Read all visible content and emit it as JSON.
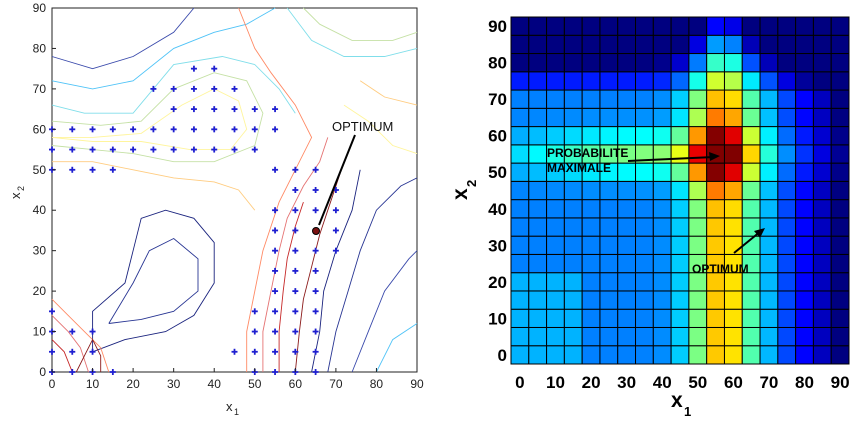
{
  "chart_data": [
    {
      "type": "contour",
      "xlabel": "x",
      "xlabel_sub": "1",
      "ylabel": "x",
      "ylabel_sub": "2",
      "xlim": [
        0,
        90
      ],
      "ylim": [
        0,
        90
      ],
      "xticks": [
        "0",
        "10",
        "20",
        "30",
        "40",
        "50",
        "60",
        "70",
        "80",
        "90"
      ],
      "yticks": [
        "0",
        "10",
        "20",
        "30",
        "40",
        "50",
        "60",
        "70",
        "80",
        "90"
      ],
      "annotation": {
        "text": "OPTIMUM",
        "arrow_to": [
          65,
          35
        ]
      },
      "optimum_point": [
        65,
        35
      ],
      "sample_points": [
        [
          0,
          0
        ],
        [
          5,
          0
        ],
        [
          10,
          0
        ],
        [
          15,
          0
        ],
        [
          0,
          5
        ],
        [
          5,
          5
        ],
        [
          10,
          5
        ],
        [
          0,
          10
        ],
        [
          5,
          10
        ],
        [
          10,
          10
        ],
        [
          0,
          15
        ],
        [
          0,
          50
        ],
        [
          5,
          50
        ],
        [
          10,
          50
        ],
        [
          15,
          50
        ],
        [
          0,
          55
        ],
        [
          5,
          55
        ],
        [
          10,
          55
        ],
        [
          15,
          55
        ],
        [
          20,
          55
        ],
        [
          25,
          55
        ],
        [
          30,
          55
        ],
        [
          35,
          55
        ],
        [
          40,
          55
        ],
        [
          45,
          55
        ],
        [
          50,
          55
        ],
        [
          0,
          60
        ],
        [
          5,
          60
        ],
        [
          10,
          60
        ],
        [
          15,
          60
        ],
        [
          20,
          60
        ],
        [
          25,
          60
        ],
        [
          30,
          60
        ],
        [
          35,
          60
        ],
        [
          40,
          60
        ],
        [
          45,
          60
        ],
        [
          50,
          60
        ],
        [
          55,
          60
        ],
        [
          30,
          65
        ],
        [
          35,
          65
        ],
        [
          40,
          65
        ],
        [
          45,
          65
        ],
        [
          50,
          65
        ],
        [
          55,
          65
        ],
        [
          25,
          70
        ],
        [
          30,
          70
        ],
        [
          35,
          70
        ],
        [
          40,
          70
        ],
        [
          45,
          70
        ],
        [
          35,
          75
        ],
        [
          40,
          75
        ],
        [
          55,
          50
        ],
        [
          60,
          50
        ],
        [
          65,
          50
        ],
        [
          60,
          45
        ],
        [
          65,
          45
        ],
        [
          70,
          45
        ],
        [
          55,
          40
        ],
        [
          60,
          40
        ],
        [
          65,
          40
        ],
        [
          70,
          40
        ],
        [
          55,
          35
        ],
        [
          60,
          35
        ],
        [
          70,
          35
        ],
        [
          55,
          30
        ],
        [
          60,
          30
        ],
        [
          65,
          30
        ],
        [
          70,
          30
        ],
        [
          55,
          25
        ],
        [
          60,
          25
        ],
        [
          65,
          25
        ],
        [
          55,
          20
        ],
        [
          60,
          20
        ],
        [
          65,
          20
        ],
        [
          50,
          15
        ],
        [
          55,
          15
        ],
        [
          60,
          15
        ],
        [
          65,
          15
        ],
        [
          50,
          10
        ],
        [
          55,
          10
        ],
        [
          60,
          10
        ],
        [
          65,
          10
        ],
        [
          45,
          5
        ],
        [
          50,
          5
        ],
        [
          55,
          5
        ],
        [
          60,
          5
        ],
        [
          65,
          5
        ],
        [
          50,
          0
        ],
        [
          55,
          0
        ],
        [
          60,
          0
        ],
        [
          65,
          0
        ]
      ],
      "colors": {
        "points": "#1f1fd0",
        "optimum": "#7a1010"
      }
    },
    {
      "type": "heatmap",
      "xlabel": "x",
      "xlabel_sub": "1",
      "ylabel": "x",
      "ylabel_sub": "2",
      "xticks": [
        "0",
        "10",
        "20",
        "30",
        "40",
        "50",
        "60",
        "70",
        "80",
        "90"
      ],
      "yticks": [
        "0",
        "10",
        "20",
        "30",
        "40",
        "50",
        "60",
        "70",
        "80",
        "90"
      ],
      "grid_step": 5,
      "cells_x": 19,
      "cells_y": 19,
      "annotations": [
        {
          "lines": [
            "PROBABILITE",
            "MAXIMALE"
          ],
          "arrow_to": [
            55,
            55
          ]
        },
        {
          "text": "OPTIMUM",
          "arrow_to": [
            68,
            35
          ]
        }
      ],
      "colormap": "jet"
    }
  ]
}
